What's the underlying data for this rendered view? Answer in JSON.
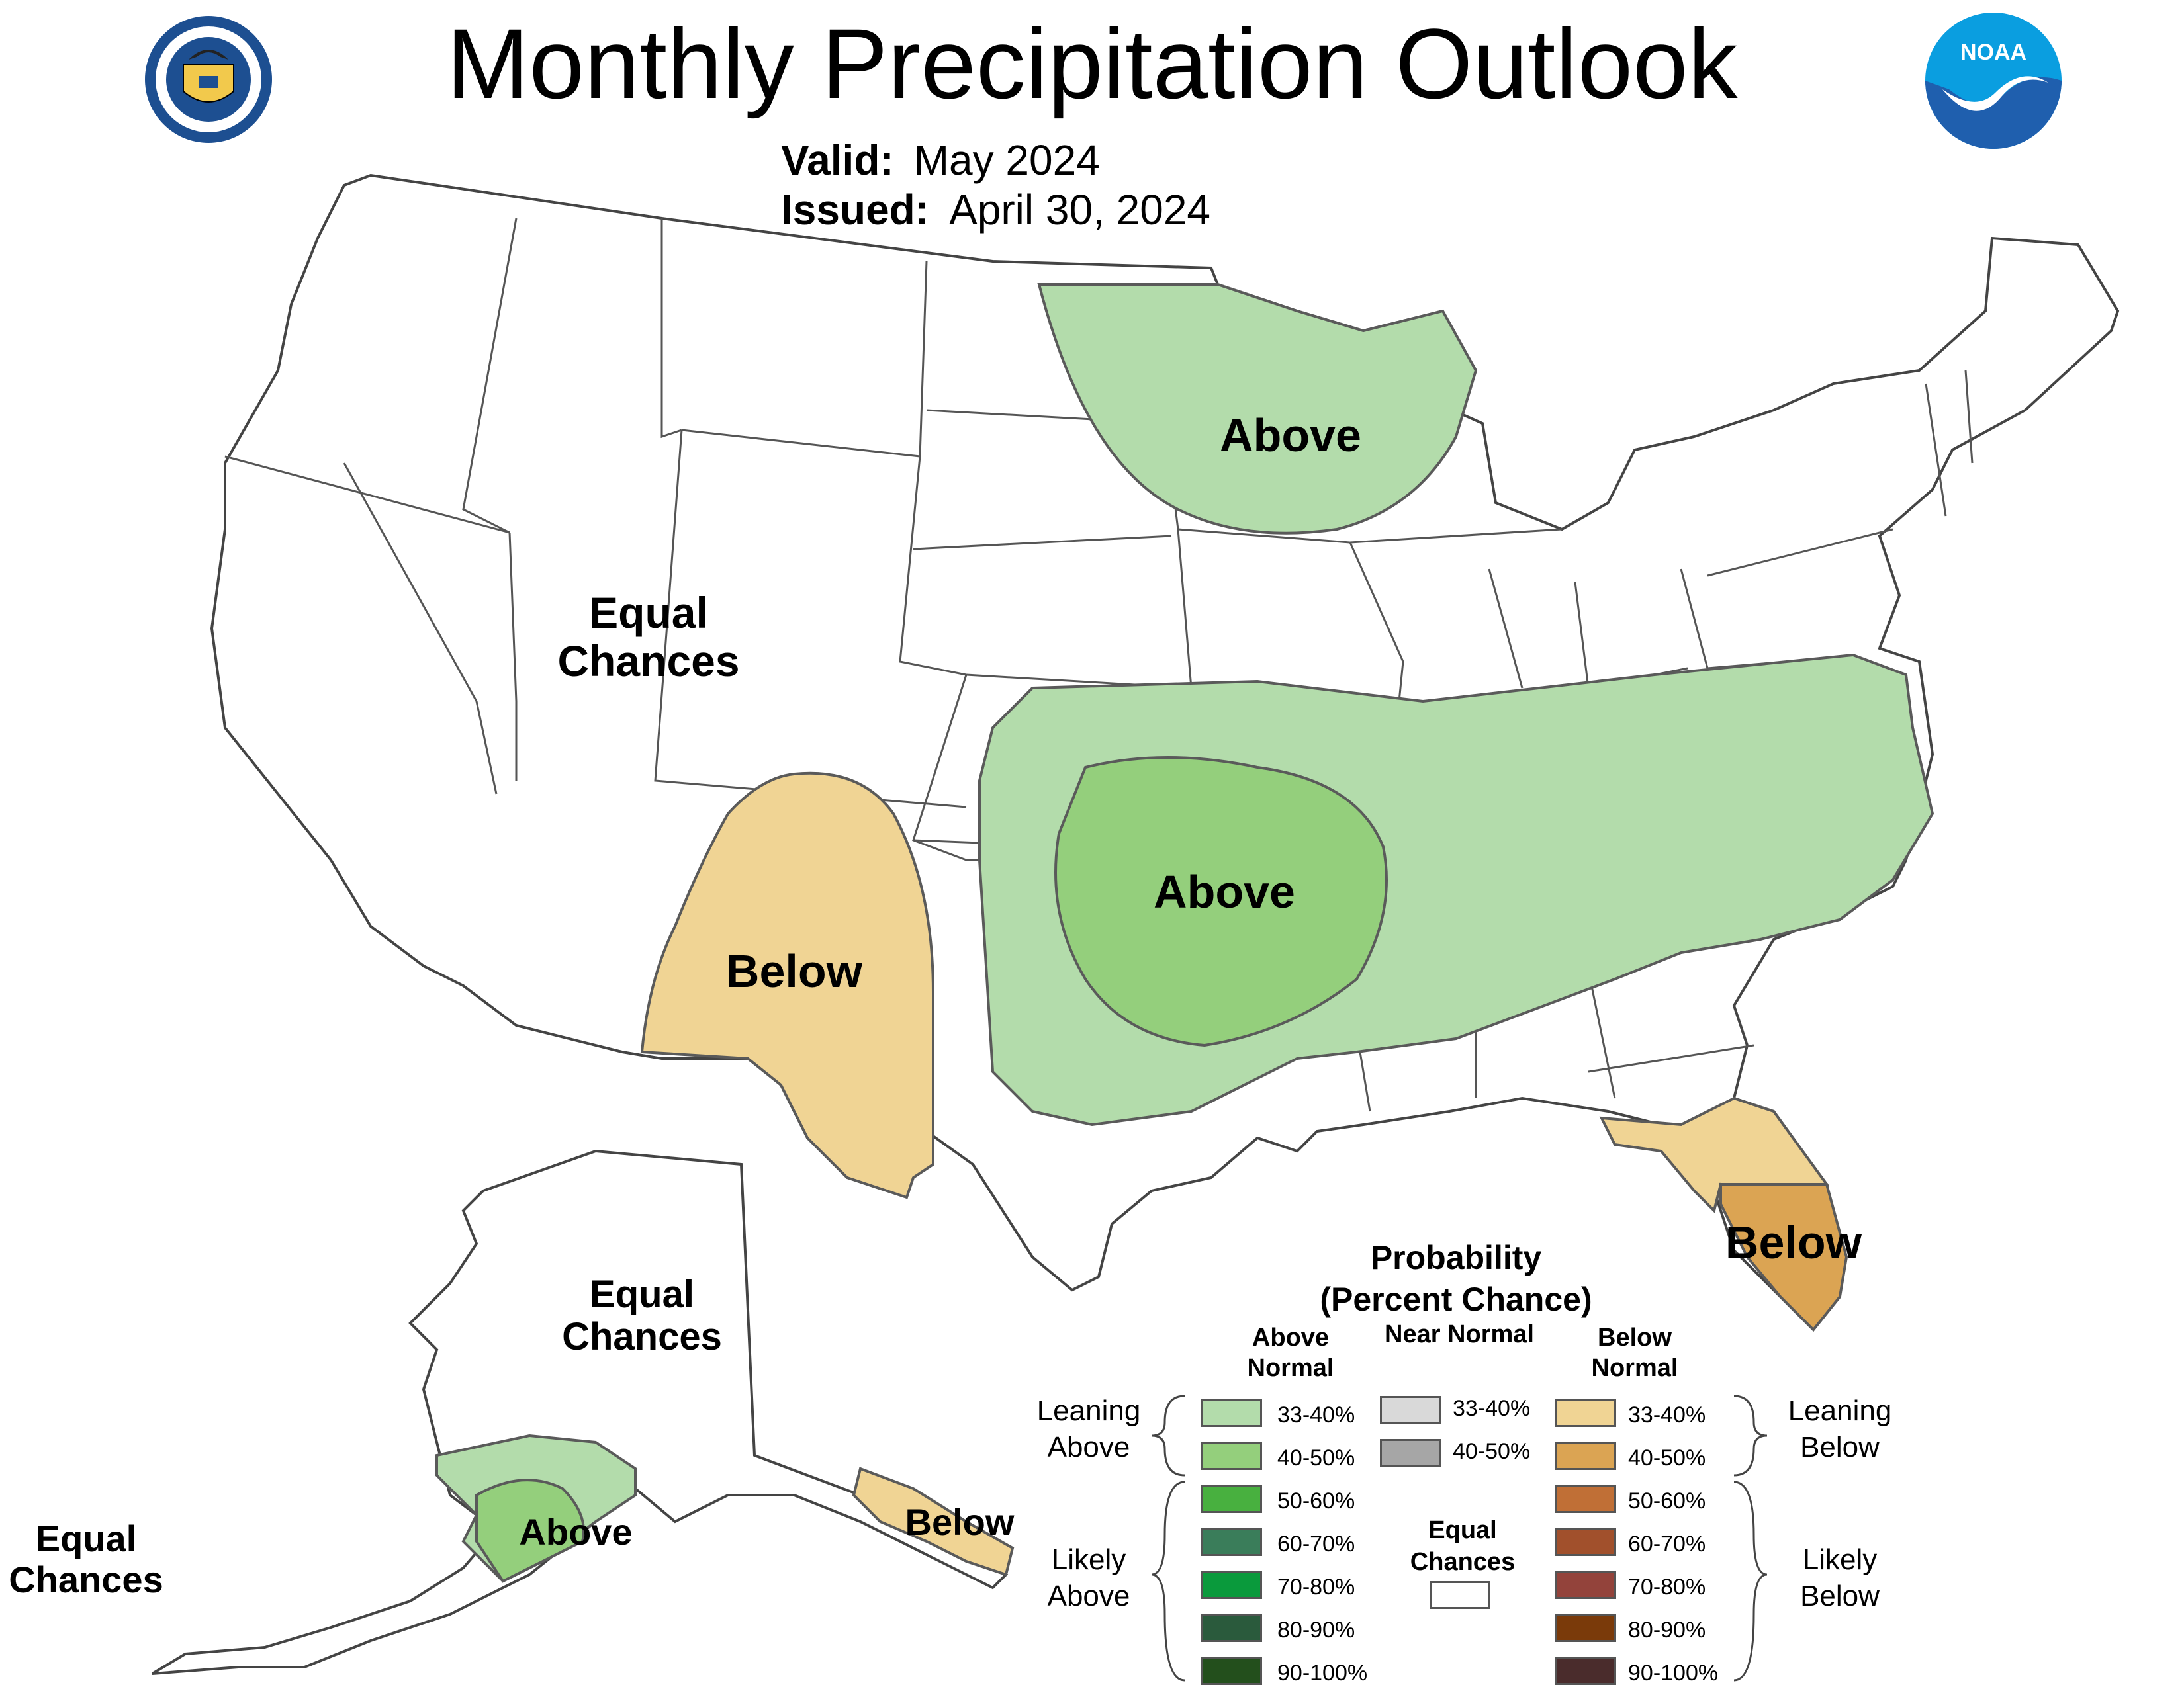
{
  "header": {
    "title": "Monthly Precipitation Outlook",
    "valid_label": "Valid:",
    "valid_value": "May 2024",
    "issued_label": "Issued:",
    "issued_value": "April 30, 2024"
  },
  "logos": {
    "left": "department-of-commerce-seal",
    "right": "noaa-logo",
    "noaa_text": "NOAA"
  },
  "regions": {
    "ec_west": "Equal Chances",
    "above_north": "Above",
    "below_southwest": "Below",
    "above_central": "Above",
    "below_florida": "Below",
    "ec_alaska": "Equal Chances",
    "above_alaska": "Above",
    "below_alaska": "Below",
    "ec_hawaii": "Equal Chances"
  },
  "legend": {
    "title_line1": "Probability",
    "title_line2": "(Percent Chance)",
    "col_above": "Above Normal",
    "col_near": "Near Normal",
    "col_below": "Below Normal",
    "leaning_above": "Leaning Above",
    "leaning_below": "Leaning Below",
    "likely_above": "Likely Above",
    "likely_below": "Likely Below",
    "equal_chances": "Equal Chances",
    "above_bins": [
      {
        "label": "33-40%",
        "color": "#b3dcab"
      },
      {
        "label": "40-50%",
        "color": "#94cf7c"
      },
      {
        "label": "50-60%",
        "color": "#48b03f"
      },
      {
        "label": "60-70%",
        "color": "#3a7d5a"
      },
      {
        "label": "70-80%",
        "color": "#0a9a3c"
      },
      {
        "label": "80-90%",
        "color": "#2a5a3c"
      },
      {
        "label": "90-100%",
        "color": "#234f1c"
      }
    ],
    "near_bins": [
      {
        "label": "33-40%",
        "color": "#d9d9d9"
      },
      {
        "label": "40-50%",
        "color": "#a6a6a6"
      }
    ],
    "below_bins": [
      {
        "label": "33-40%",
        "color": "#f0d494"
      },
      {
        "label": "40-50%",
        "color": "#dba453"
      },
      {
        "label": "50-60%",
        "color": "#c06f36"
      },
      {
        "label": "60-70%",
        "color": "#a1502c"
      },
      {
        "label": "70-80%",
        "color": "#93433b"
      },
      {
        "label": "80-90%",
        "color": "#7a3a0a"
      },
      {
        "label": "90-100%",
        "color": "#4a2c2c"
      }
    ]
  },
  "colors": {
    "above_lean": "#b3dcab",
    "above_40": "#94cf7c",
    "below_lean": "#f0d494",
    "below_40": "#dba453",
    "outline": "#5a5a5a",
    "state_lines": "#333333"
  }
}
